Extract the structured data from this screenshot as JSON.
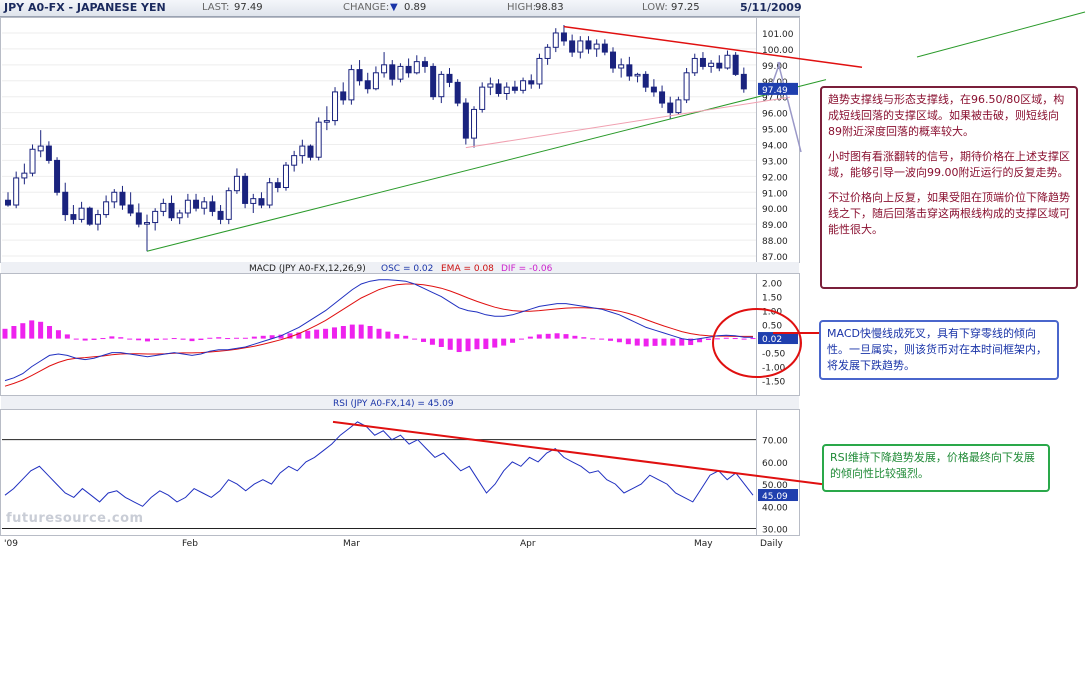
{
  "header": {
    "title": "JPY A0-FX - JAPANESE YEN",
    "last_label": "LAST:",
    "last_value": "97.49",
    "change_label": "CHANGE:",
    "change_arrow": "▼",
    "change_value": "0.89",
    "high_label": "HIGH:",
    "high_value": "98.83",
    "low_label": "LOW:",
    "low_value": "97.25",
    "date": "5/11/2009"
  },
  "watermark": "futuresource.com",
  "annotations": {
    "trend_note": [
      "趋势支撑线与形态支撑线，在96.50/80区域，构成短线回落的支撑区域。如果被击破，则短线向89附近深度回落的概率较大。",
      "小时图有看涨翻转的信号，期待价格在上述支撑区域，能够引导一波向99.00附近运行的反复走势。",
      "不过价格向上反复，如果受阻在顶端价位下降趋势线之下，随后回落击穿这两根线构成的支撑区域可能性很大。"
    ],
    "macd_note": "MACD快慢线成死叉，具有下穿零线的倾向性。一旦属实，则该货币对在本时间框架内，将发展下跌趋势。",
    "rsi_note": "RSI维持下降趋势发展，价格最终向下发展的倾向性比较强烈。"
  },
  "colors": {
    "up_candle": "#ffffff",
    "down_candle": "#1a237e",
    "red_line": "#e01010",
    "green_line": "#2a9a2a",
    "pink_line": "#f0a0b0",
    "macd_line": "#2030c0",
    "signal_line": "#e01010",
    "osc_bars": "#ee22ee",
    "rsi_line": "#2030c0"
  },
  "chart_data": [
    {
      "type": "candlestick",
      "panel": "price",
      "ylim": [
        87,
        101.5
      ],
      "yticks": [
        "101.00",
        "100.00",
        "99.00",
        "98.00",
        "97.00",
        "96.00",
        "95.00",
        "94.00",
        "93.00",
        "92.00",
        "91.00",
        "90.00",
        "89.00",
        "88.00",
        "87.00"
      ],
      "last_label": "97.49",
      "x_labels": [
        "'09",
        "Feb",
        "Mar",
        "Apr",
        "May",
        "Daily"
      ],
      "bars": [
        [
          90.5,
          91.0,
          90.1,
          90.2
        ],
        [
          90.2,
          92.3,
          90.0,
          91.9
        ],
        [
          91.9,
          92.8,
          91.5,
          92.2
        ],
        [
          92.2,
          94.0,
          92.0,
          93.7
        ],
        [
          93.6,
          94.9,
          93.2,
          93.9
        ],
        [
          93.9,
          94.2,
          92.8,
          93.0
        ],
        [
          93.0,
          93.2,
          90.8,
          91.0
        ],
        [
          91.0,
          91.6,
          89.2,
          89.6
        ],
        [
          89.6,
          90.2,
          89.0,
          89.3
        ],
        [
          89.3,
          90.4,
          89.1,
          90.0
        ],
        [
          90.0,
          90.1,
          88.9,
          89.0
        ],
        [
          89.0,
          89.9,
          88.6,
          89.6
        ],
        [
          89.6,
          90.8,
          89.4,
          90.4
        ],
        [
          90.4,
          91.2,
          90.0,
          91.0
        ],
        [
          91.0,
          91.4,
          89.9,
          90.2
        ],
        [
          90.2,
          91.0,
          89.5,
          89.7
        ],
        [
          89.7,
          90.3,
          88.8,
          89.0
        ],
        [
          89.0,
          89.6,
          87.3,
          89.1
        ],
        [
          89.1,
          90.0,
          88.6,
          89.8
        ],
        [
          89.8,
          90.6,
          89.5,
          90.3
        ],
        [
          90.3,
          90.8,
          89.2,
          89.4
        ],
        [
          89.4,
          89.9,
          89.0,
          89.7
        ],
        [
          89.7,
          90.9,
          89.4,
          90.5
        ],
        [
          90.5,
          90.9,
          89.8,
          90.0
        ],
        [
          90.0,
          90.7,
          89.6,
          90.4
        ],
        [
          90.4,
          90.8,
          89.5,
          89.8
        ],
        [
          89.8,
          90.2,
          89.0,
          89.3
        ],
        [
          89.3,
          91.3,
          89.0,
          91.1
        ],
        [
          91.1,
          92.5,
          90.9,
          92.0
        ],
        [
          92.0,
          92.2,
          90.0,
          90.3
        ],
        [
          90.3,
          90.9,
          89.7,
          90.6
        ],
        [
          90.6,
          91.0,
          90.0,
          90.2
        ],
        [
          90.2,
          91.9,
          90.0,
          91.6
        ],
        [
          91.6,
          91.9,
          91.0,
          91.3
        ],
        [
          91.3,
          92.9,
          91.1,
          92.7
        ],
        [
          92.7,
          93.6,
          92.3,
          93.3
        ],
        [
          93.3,
          94.3,
          92.8,
          93.9
        ],
        [
          93.9,
          94.0,
          93.0,
          93.2
        ],
        [
          93.2,
          95.7,
          93.0,
          95.4
        ],
        [
          95.4,
          96.4,
          94.9,
          95.5
        ],
        [
          95.5,
          97.6,
          95.2,
          97.3
        ],
        [
          97.3,
          97.9,
          96.5,
          96.8
        ],
        [
          96.8,
          99.0,
          96.5,
          98.7
        ],
        [
          98.7,
          99.3,
          97.7,
          98.0
        ],
        [
          98.0,
          98.5,
          97.2,
          97.5
        ],
        [
          97.5,
          98.9,
          97.4,
          98.5
        ],
        [
          98.5,
          99.8,
          98.2,
          99.0
        ],
        [
          99.0,
          99.3,
          97.7,
          98.1
        ],
        [
          98.1,
          99.1,
          97.9,
          98.9
        ],
        [
          98.9,
          99.4,
          98.2,
          98.5
        ],
        [
          98.5,
          99.6,
          98.4,
          99.2
        ],
        [
          99.2,
          99.5,
          98.5,
          98.9
        ],
        [
          98.9,
          99.1,
          96.8,
          97.0
        ],
        [
          97.0,
          98.6,
          96.6,
          98.4
        ],
        [
          98.4,
          98.8,
          97.6,
          97.9
        ],
        [
          97.9,
          98.1,
          96.4,
          96.6
        ],
        [
          96.6,
          96.9,
          94.0,
          94.4
        ],
        [
          94.4,
          96.4,
          93.8,
          96.2
        ],
        [
          96.2,
          97.9,
          96.0,
          97.6
        ],
        [
          97.6,
          98.2,
          97.1,
          97.8
        ],
        [
          97.8,
          98.1,
          97.0,
          97.2
        ],
        [
          97.2,
          97.9,
          96.8,
          97.6
        ],
        [
          97.6,
          98.0,
          97.2,
          97.4
        ],
        [
          97.4,
          98.2,
          97.2,
          98.0
        ],
        [
          98.0,
          98.4,
          97.5,
          97.8
        ],
        [
          97.8,
          99.7,
          97.5,
          99.4
        ],
        [
          99.4,
          100.3,
          99.0,
          100.1
        ],
        [
          100.1,
          101.3,
          99.8,
          101.0
        ],
        [
          101.0,
          101.5,
          100.2,
          100.5
        ],
        [
          100.5,
          100.9,
          99.5,
          99.8
        ],
        [
          99.8,
          100.8,
          99.4,
          100.5
        ],
        [
          100.5,
          100.8,
          99.7,
          100.0
        ],
        [
          100.0,
          100.6,
          99.5,
          100.3
        ],
        [
          100.3,
          100.6,
          99.6,
          99.8
        ],
        [
          99.8,
          100.1,
          98.5,
          98.8
        ],
        [
          98.8,
          99.4,
          98.2,
          99.0
        ],
        [
          99.0,
          99.5,
          98.0,
          98.3
        ],
        [
          98.3,
          98.5,
          97.9,
          98.4
        ],
        [
          98.4,
          98.6,
          97.3,
          97.6
        ],
        [
          97.6,
          98.1,
          97.0,
          97.3
        ],
        [
          97.3,
          97.7,
          96.3,
          96.6
        ],
        [
          96.6,
          97.0,
          95.6,
          96.0
        ],
        [
          96.0,
          97.0,
          95.9,
          96.8
        ],
        [
          96.8,
          98.8,
          96.6,
          98.5
        ],
        [
          98.5,
          99.7,
          98.3,
          99.4
        ],
        [
          99.4,
          99.8,
          98.7,
          98.9
        ],
        [
          98.9,
          99.3,
          98.5,
          99.1
        ],
        [
          99.1,
          99.6,
          98.6,
          98.8
        ],
        [
          98.8,
          99.9,
          98.7,
          99.6
        ],
        [
          99.6,
          99.8,
          98.3,
          98.4
        ],
        [
          98.4,
          98.83,
          97.25,
          97.49
        ]
      ]
    },
    {
      "type": "line",
      "panel": "macd",
      "title": "MACD (JPY A0-FX,12,26,9)",
      "osc_label": "OSC = 0.02",
      "ema_label": "EMA = 0.08",
      "dif_label": "DIF = -0.06",
      "ylim": [
        -1.8,
        2.2
      ],
      "yticks": [
        "2.00",
        "1.50",
        "1.00",
        "0.50",
        "0.00",
        "-0.50",
        "-1.00",
        "-1.50"
      ],
      "last_label": "0.02",
      "series": [
        {
          "name": "MACD",
          "values": [
            -1.5,
            -1.4,
            -1.25,
            -1.0,
            -0.8,
            -0.6,
            -0.55,
            -0.6,
            -0.7,
            -0.75,
            -0.7,
            -0.6,
            -0.5,
            -0.5,
            -0.55,
            -0.6,
            -0.65,
            -0.6,
            -0.55,
            -0.5,
            -0.55,
            -0.6,
            -0.55,
            -0.45,
            -0.4,
            -0.4,
            -0.35,
            -0.3,
            -0.2,
            -0.1,
            0.0,
            0.1,
            0.25,
            0.4,
            0.6,
            0.8,
            1.0,
            1.25,
            1.5,
            1.75,
            1.95,
            2.05,
            2.1,
            2.1,
            2.08,
            2.05,
            1.95,
            1.8,
            1.65,
            1.5,
            1.3,
            1.1,
            1.0,
            0.95,
            0.85,
            0.8,
            0.8,
            0.85,
            0.95,
            1.05,
            1.15,
            1.2,
            1.25,
            1.25,
            1.2,
            1.15,
            1.1,
            1.05,
            0.95,
            0.85,
            0.7,
            0.55,
            0.4,
            0.3,
            0.2,
            0.1,
            0.0,
            -0.05,
            0.0,
            0.05,
            0.1,
            0.12,
            0.1,
            0.05,
            0.05
          ]
        },
        {
          "name": "EMA",
          "values": [
            -1.7,
            -1.6,
            -1.48,
            -1.32,
            -1.15,
            -0.98,
            -0.85,
            -0.75,
            -0.7,
            -0.68,
            -0.65,
            -0.62,
            -0.58,
            -0.55,
            -0.54,
            -0.54,
            -0.55,
            -0.55,
            -0.54,
            -0.52,
            -0.51,
            -0.51,
            -0.5,
            -0.48,
            -0.45,
            -0.42,
            -0.38,
            -0.33,
            -0.27,
            -0.2,
            -0.12,
            -0.04,
            0.06,
            0.18,
            0.32,
            0.48,
            0.65,
            0.85,
            1.05,
            1.25,
            1.45,
            1.6,
            1.75,
            1.85,
            1.92,
            1.95,
            1.95,
            1.92,
            1.87,
            1.8,
            1.7,
            1.58,
            1.45,
            1.33,
            1.22,
            1.12,
            1.05,
            1.0,
            0.98,
            0.98,
            1.0,
            1.03,
            1.06,
            1.09,
            1.1,
            1.1,
            1.09,
            1.07,
            1.03,
            0.98,
            0.9,
            0.8,
            0.68,
            0.56,
            0.45,
            0.35,
            0.25,
            0.18,
            0.13,
            0.1,
            0.09,
            0.09,
            0.08,
            0.08,
            0.08
          ]
        },
        {
          "name": "OSC",
          "values": [
            0.35,
            0.45,
            0.55,
            0.65,
            0.6,
            0.45,
            0.3,
            0.15,
            0.0,
            -0.07,
            -0.05,
            0.02,
            0.08,
            0.05,
            -0.01,
            -0.06,
            -0.1,
            -0.05,
            -0.01,
            0.02,
            -0.04,
            -0.09,
            -0.05,
            0.03,
            0.05,
            0.02,
            0.03,
            0.03,
            0.07,
            0.1,
            0.12,
            0.14,
            0.19,
            0.22,
            0.28,
            0.32,
            0.35,
            0.4,
            0.45,
            0.5,
            0.5,
            0.45,
            0.35,
            0.25,
            0.16,
            0.1,
            0.0,
            -0.12,
            -0.22,
            -0.3,
            -0.4,
            -0.48,
            -0.45,
            -0.38,
            -0.37,
            -0.32,
            -0.25,
            -0.15,
            -0.03,
            0.07,
            0.15,
            0.17,
            0.19,
            0.16,
            0.1,
            0.05,
            0.01,
            -0.02,
            -0.08,
            -0.13,
            -0.2,
            -0.25,
            -0.28,
            -0.26,
            -0.25,
            -0.25,
            -0.25,
            -0.23,
            -0.13,
            -0.05,
            0.01,
            0.03,
            0.02,
            -0.03,
            0.02
          ]
        }
      ]
    },
    {
      "type": "line",
      "panel": "rsi",
      "title": "RSI (JPY A0-FX,14) = 45.09",
      "ylim": [
        28,
        82
      ],
      "yticks": [
        "70.00",
        "60.00",
        "50.00",
        "40.00",
        "30.00"
      ],
      "last_label": "45.09",
      "series": [
        {
          "name": "RSI",
          "values": [
            45,
            48,
            52,
            56,
            58,
            54,
            50,
            46,
            44,
            48,
            45,
            42,
            46,
            47,
            44,
            42,
            40,
            44,
            47,
            45,
            42,
            44,
            48,
            46,
            44,
            47,
            52,
            50,
            47,
            50,
            52,
            50,
            55,
            58,
            56,
            60,
            62,
            65,
            68,
            72,
            75,
            78,
            76,
            72,
            74,
            70,
            72,
            68,
            70,
            66,
            62,
            64,
            60,
            56,
            58,
            52,
            46,
            50,
            56,
            60,
            58,
            62,
            60,
            64,
            66,
            62,
            60,
            58,
            55,
            56,
            52,
            50,
            46,
            48,
            50,
            54,
            52,
            50,
            46,
            44,
            42,
            48,
            54,
            56,
            52,
            55,
            50,
            45
          ]
        }
      ]
    }
  ]
}
